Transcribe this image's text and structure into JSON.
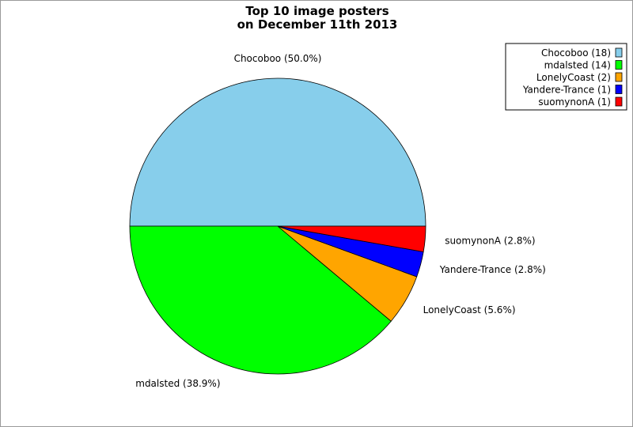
{
  "chart_data": {
    "type": "pie",
    "title_lines": [
      "Top 10 image posters",
      "on December 11th 2013"
    ],
    "slices": [
      {
        "name": "Chocoboo",
        "count": 18,
        "label": "Chocoboo (50.0%)",
        "legend": "Chocoboo (18)",
        "color": "#87ceeb"
      },
      {
        "name": "mdalsted",
        "count": 14,
        "label": "mdalsted (38.9%)",
        "legend": "mdalsted (14)",
        "color": "#00ff00"
      },
      {
        "name": "LonelyCoast",
        "count": 2,
        "label": "LonelyCoast (5.6%)",
        "legend": "LonelyCoast (2)",
        "color": "#ffa500"
      },
      {
        "name": "Yandere-Trance",
        "count": 1,
        "label": "Yandere-Trance (2.8%)",
        "legend": "Yandere-Trance (1)",
        "color": "#0000ff"
      },
      {
        "name": "suomynonA",
        "count": 1,
        "label": "suomynonA (2.8%)",
        "legend": "suomynonA (1)",
        "color": "#ff0000"
      }
    ],
    "legend_position": "top-right"
  }
}
